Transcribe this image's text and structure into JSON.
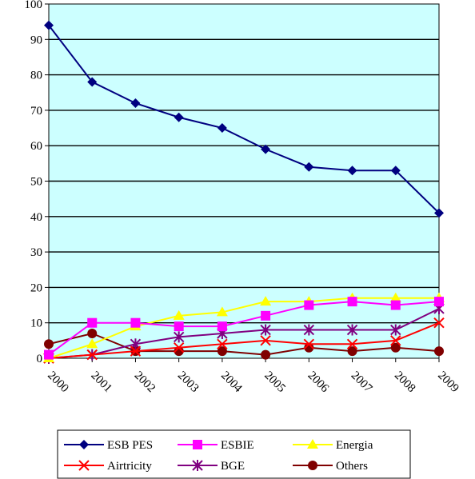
{
  "chart_data": {
    "type": "line",
    "title": "",
    "xlabel": "",
    "ylabel": "",
    "categories": [
      "2000",
      "2001",
      "2002",
      "2003",
      "2004",
      "2005",
      "2006",
      "2007",
      "2008",
      "2009"
    ],
    "ylim": [
      0,
      100
    ],
    "yticks": [
      0,
      10,
      20,
      30,
      40,
      50,
      60,
      70,
      80,
      90,
      100
    ],
    "grid": "horizontal",
    "plot_background": "#ccffff",
    "legend_position": "bottom",
    "series": [
      {
        "name": "ESB PES",
        "color": "#000080",
        "marker": "diamond",
        "values": [
          94,
          78,
          72,
          68,
          65,
          59,
          54,
          53,
          53,
          41
        ]
      },
      {
        "name": "ESBIE",
        "color": "#ff00ff",
        "marker": "square",
        "values": [
          1,
          10,
          10,
          9,
          9,
          12,
          15,
          16,
          15,
          16
        ]
      },
      {
        "name": "Energia",
        "color": "#ffff00",
        "marker": "triangle",
        "values": [
          0,
          4,
          9,
          12,
          13,
          16,
          16,
          17,
          17,
          17
        ]
      },
      {
        "name": "Airtricity",
        "color": "#ff0000",
        "marker": "x",
        "values": [
          0,
          1,
          2,
          3,
          4,
          5,
          4,
          4,
          5,
          10
        ]
      },
      {
        "name": "BGE",
        "color": "#800080",
        "marker": "star",
        "values": [
          0,
          1,
          4,
          6,
          7,
          8,
          8,
          8,
          8,
          14
        ]
      },
      {
        "name": "Others",
        "color": "#800000",
        "marker": "circle",
        "values": [
          4,
          7,
          2,
          2,
          2,
          1,
          3,
          2,
          3,
          2
        ]
      }
    ]
  }
}
